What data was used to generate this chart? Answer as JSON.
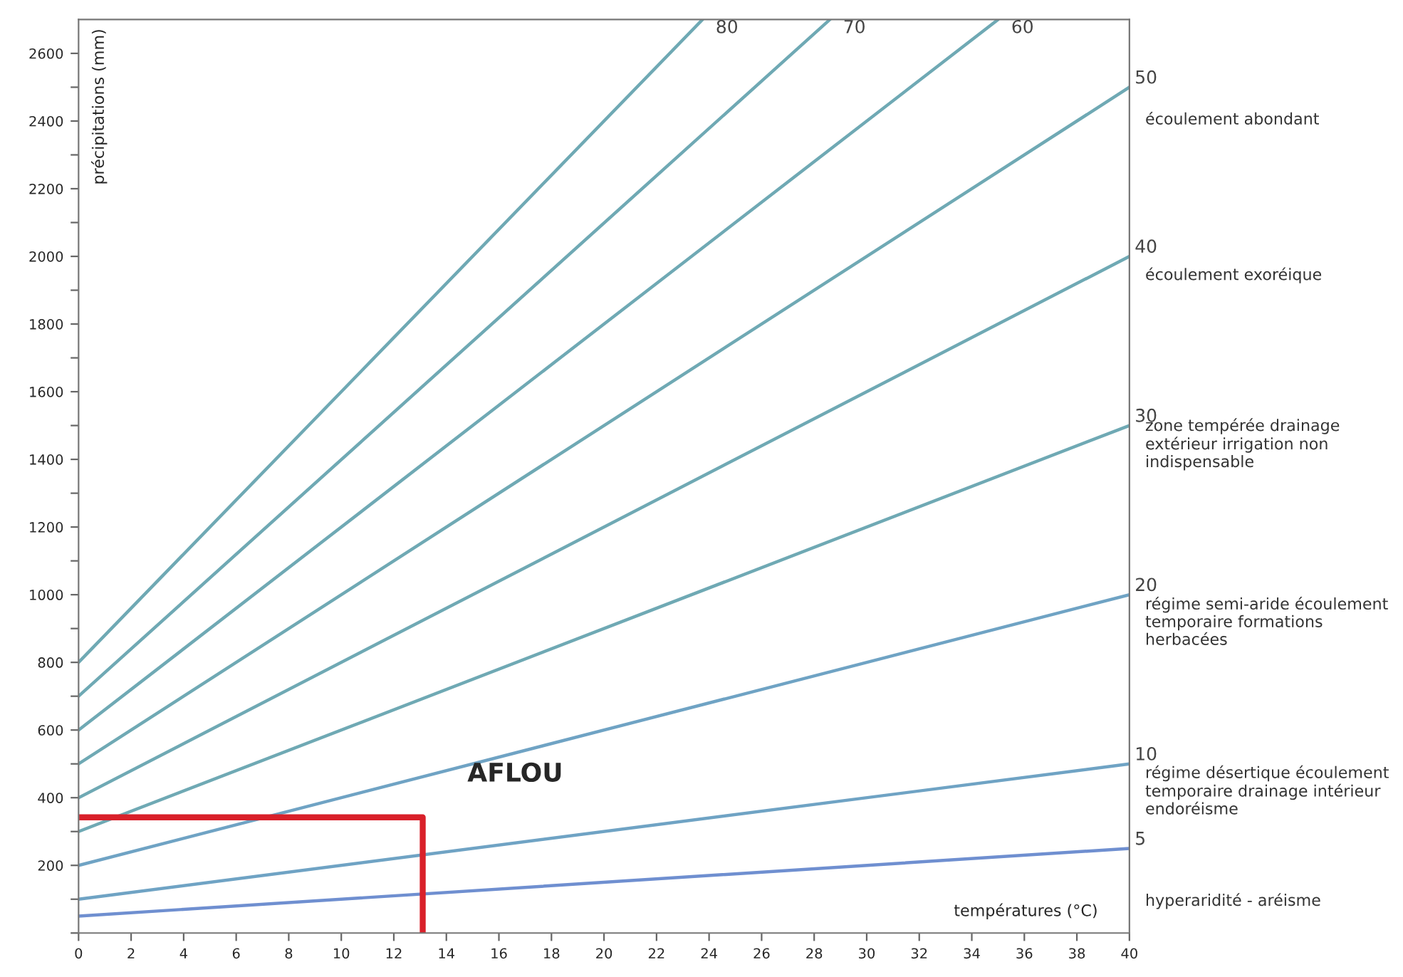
{
  "chart_data": {
    "type": "line",
    "xlabel": "températures (°C)",
    "ylabel": "précipitations (mm)",
    "xlim": [
      0,
      40
    ],
    "xticks": [
      0,
      2,
      4,
      6,
      8,
      10,
      12,
      14,
      16,
      18,
      20,
      22,
      24,
      26,
      28,
      30,
      32,
      34,
      36,
      38,
      40
    ],
    "ylim": [
      0,
      2700
    ],
    "yticks": [
      {
        "value": 0,
        "label": null
      },
      {
        "value": 100,
        "label": null
      },
      200,
      {
        "value": 300,
        "label": null
      },
      400,
      {
        "value": 500,
        "label": null
      },
      600,
      {
        "value": 700,
        "label": null
      },
      800,
      {
        "value": 900,
        "label": null
      },
      1000,
      {
        "value": 1100,
        "label": null
      },
      1200,
      {
        "value": 1300,
        "label": null
      },
      1400,
      {
        "value": 1500,
        "label": null
      },
      1600,
      {
        "value": 1700,
        "label": null
      },
      1800,
      {
        "value": 1900,
        "label": null
      },
      2000,
      {
        "value": 2100,
        "label": null
      },
      2200,
      {
        "value": 2300,
        "label": null
      },
      2400,
      {
        "value": 2500,
        "label": null
      },
      2600
    ],
    "grid": false,
    "legend": false,
    "marker": "none",
    "line_style": "solid",
    "series": [
      {
        "name": "80",
        "color": "#6fa9b4",
        "x": [
          0,
          23.75
        ],
        "values": [
          800,
          2700
        ]
      },
      {
        "name": "70",
        "color": "#6fa9b4",
        "x": [
          0,
          28.6
        ],
        "values": [
          700,
          2700
        ]
      },
      {
        "name": "60",
        "color": "#6fa9b4",
        "x": [
          0,
          35
        ],
        "values": [
          600,
          2700
        ]
      },
      {
        "name": "50",
        "color": "#6fa9b4",
        "x": [
          0,
          40
        ],
        "values": [
          500,
          2500
        ]
      },
      {
        "name": "40",
        "color": "#6fa9b4",
        "x": [
          0,
          40
        ],
        "values": [
          400,
          2000
        ]
      },
      {
        "name": "30",
        "color": "#6fa9b4",
        "x": [
          0,
          40
        ],
        "values": [
          300,
          1500
        ]
      },
      {
        "name": "20",
        "color": "#6fa3c4",
        "x": [
          0,
          40
        ],
        "values": [
          200,
          1000
        ]
      },
      {
        "name": "10",
        "color": "#6fa3c4",
        "x": [
          0,
          40
        ],
        "values": [
          100,
          500
        ]
      },
      {
        "name": "5",
        "color": "#6f8fd0",
        "x": [
          0,
          40
        ],
        "values": [
          50,
          250
        ]
      },
      {
        "color": "#d9202a",
        "x": [
          0,
          13.1,
          13.1
        ],
        "values": [
          342,
          342,
          0
        ]
      }
    ],
    "annotations": [
      "AFLOU",
      "écoulement abondant",
      "écoulement exoréique",
      "zone tempérée drainage extérieur irrigation non indispensable",
      "régime semi-aride écoulement temporaire formations herbacées",
      "régime désertique écoulement temporaire drainage intérieur endoréisme",
      "hyperaridité - aréisme"
    ]
  }
}
